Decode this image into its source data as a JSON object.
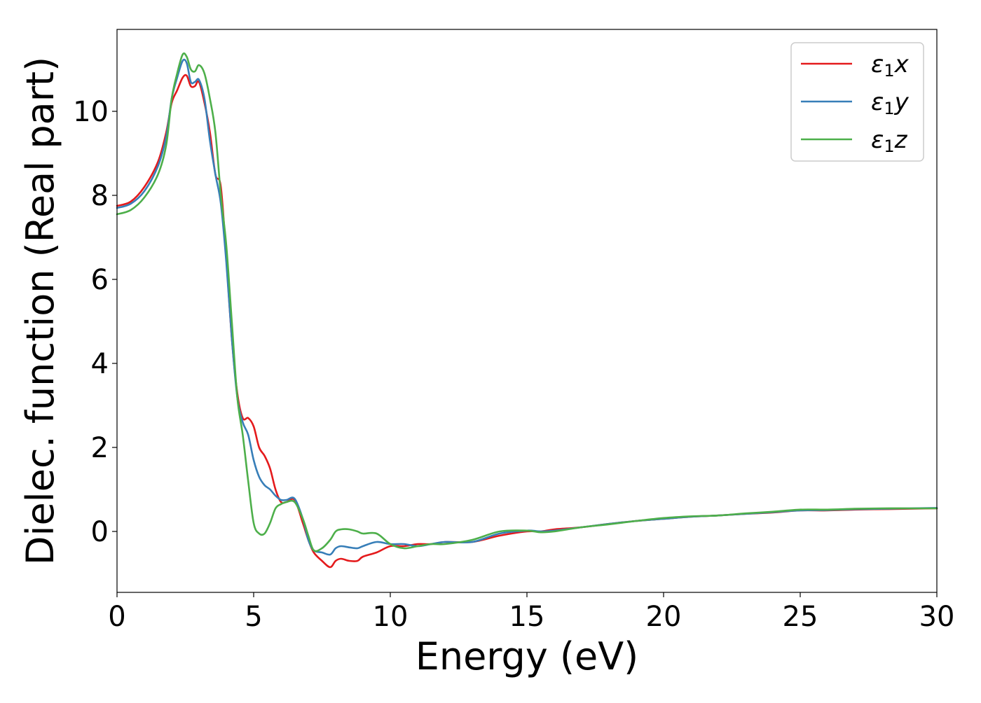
{
  "chart_data": {
    "type": "line",
    "xlabel": "Energy (eV)",
    "ylabel": "Dielec. function (Real part)",
    "xlim": [
      0,
      30
    ],
    "ylim": [
      -1.45,
      11.95
    ],
    "xticks": [
      0,
      5,
      10,
      15,
      20,
      25,
      30
    ],
    "yticks": [
      0,
      2,
      4,
      6,
      8,
      10
    ],
    "grid": false,
    "legend_position": "top-right",
    "series": [
      {
        "name": "ε1x",
        "legend": {
          "base": "ε",
          "sub": "1",
          "suffix": "x"
        },
        "color": "#e41a1c",
        "points": [
          [
            0,
            7.75
          ],
          [
            0.5,
            7.85
          ],
          [
            1.0,
            8.2
          ],
          [
            1.5,
            8.8
          ],
          [
            1.8,
            9.5
          ],
          [
            2.0,
            10.2
          ],
          [
            2.2,
            10.5
          ],
          [
            2.4,
            10.8
          ],
          [
            2.55,
            10.85
          ],
          [
            2.7,
            10.6
          ],
          [
            2.85,
            10.6
          ],
          [
            3.0,
            10.7
          ],
          [
            3.2,
            10.2
          ],
          [
            3.4,
            9.5
          ],
          [
            3.6,
            8.5
          ],
          [
            3.8,
            8.2
          ],
          [
            4.0,
            6.5
          ],
          [
            4.2,
            4.6
          ],
          [
            4.4,
            3.3
          ],
          [
            4.6,
            2.7
          ],
          [
            4.8,
            2.7
          ],
          [
            5.0,
            2.5
          ],
          [
            5.2,
            2.0
          ],
          [
            5.4,
            1.8
          ],
          [
            5.6,
            1.5
          ],
          [
            5.8,
            1.0
          ],
          [
            6.0,
            0.7
          ],
          [
            6.2,
            0.7
          ],
          [
            6.5,
            0.75
          ],
          [
            6.8,
            0.2
          ],
          [
            7.0,
            -0.2
          ],
          [
            7.2,
            -0.5
          ],
          [
            7.5,
            -0.7
          ],
          [
            7.8,
            -0.85
          ],
          [
            8.0,
            -0.7
          ],
          [
            8.2,
            -0.65
          ],
          [
            8.5,
            -0.7
          ],
          [
            8.8,
            -0.7
          ],
          [
            9.0,
            -0.6
          ],
          [
            9.5,
            -0.5
          ],
          [
            10.0,
            -0.35
          ],
          [
            10.5,
            -0.35
          ],
          [
            11.0,
            -0.3
          ],
          [
            11.5,
            -0.3
          ],
          [
            12.0,
            -0.25
          ],
          [
            13.0,
            -0.25
          ],
          [
            14.0,
            -0.1
          ],
          [
            15.0,
            0.0
          ],
          [
            15.5,
            0.0
          ],
          [
            16.0,
            0.05
          ],
          [
            17.0,
            0.1
          ],
          [
            18.0,
            0.18
          ],
          [
            19.0,
            0.25
          ],
          [
            20.0,
            0.3
          ],
          [
            21.0,
            0.35
          ],
          [
            22.0,
            0.38
          ],
          [
            23.0,
            0.42
          ],
          [
            24.0,
            0.45
          ],
          [
            25.0,
            0.5
          ],
          [
            26.0,
            0.5
          ],
          [
            27.0,
            0.52
          ],
          [
            28.0,
            0.53
          ],
          [
            29.0,
            0.54
          ],
          [
            30.0,
            0.55
          ]
        ]
      },
      {
        "name": "ε1y",
        "legend": {
          "base": "ε",
          "sub": "1",
          "suffix": "y"
        },
        "color": "#377eb8",
        "points": [
          [
            0,
            7.7
          ],
          [
            0.5,
            7.8
          ],
          [
            1.0,
            8.1
          ],
          [
            1.5,
            8.7
          ],
          [
            1.8,
            9.4
          ],
          [
            2.0,
            10.3
          ],
          [
            2.2,
            10.8
          ],
          [
            2.4,
            11.2
          ],
          [
            2.55,
            11.15
          ],
          [
            2.7,
            10.7
          ],
          [
            2.85,
            10.7
          ],
          [
            3.0,
            10.75
          ],
          [
            3.2,
            10.3
          ],
          [
            3.4,
            9.3
          ],
          [
            3.6,
            8.5
          ],
          [
            3.8,
            7.8
          ],
          [
            4.0,
            6.4
          ],
          [
            4.2,
            4.6
          ],
          [
            4.4,
            3.2
          ],
          [
            4.6,
            2.6
          ],
          [
            4.8,
            2.3
          ],
          [
            5.0,
            1.7
          ],
          [
            5.2,
            1.3
          ],
          [
            5.4,
            1.1
          ],
          [
            5.6,
            1.0
          ],
          [
            5.8,
            0.85
          ],
          [
            6.0,
            0.75
          ],
          [
            6.2,
            0.75
          ],
          [
            6.5,
            0.78
          ],
          [
            6.8,
            0.3
          ],
          [
            7.0,
            -0.2
          ],
          [
            7.2,
            -0.45
          ],
          [
            7.5,
            -0.5
          ],
          [
            7.8,
            -0.55
          ],
          [
            8.0,
            -0.4
          ],
          [
            8.2,
            -0.35
          ],
          [
            8.5,
            -0.38
          ],
          [
            8.8,
            -0.4
          ],
          [
            9.0,
            -0.35
          ],
          [
            9.5,
            -0.25
          ],
          [
            10.0,
            -0.3
          ],
          [
            10.5,
            -0.3
          ],
          [
            11.0,
            -0.35
          ],
          [
            11.5,
            -0.3
          ],
          [
            12.0,
            -0.25
          ],
          [
            13.0,
            -0.25
          ],
          [
            14.0,
            -0.05
          ],
          [
            15.0,
            0.02
          ],
          [
            15.5,
            0.0
          ],
          [
            16.0,
            0.02
          ],
          [
            17.0,
            0.1
          ],
          [
            18.0,
            0.18
          ],
          [
            19.0,
            0.25
          ],
          [
            20.0,
            0.3
          ],
          [
            21.0,
            0.35
          ],
          [
            22.0,
            0.38
          ],
          [
            23.0,
            0.42
          ],
          [
            24.0,
            0.46
          ],
          [
            25.0,
            0.5
          ],
          [
            26.0,
            0.51
          ],
          [
            27.0,
            0.53
          ],
          [
            28.0,
            0.54
          ],
          [
            29.0,
            0.55
          ],
          [
            30.0,
            0.56
          ]
        ]
      },
      {
        "name": "ε1z",
        "legend": {
          "base": "ε",
          "sub": "1",
          "suffix": "z"
        },
        "color": "#4daf4a",
        "points": [
          [
            0,
            7.55
          ],
          [
            0.5,
            7.65
          ],
          [
            1.0,
            7.95
          ],
          [
            1.5,
            8.5
          ],
          [
            1.8,
            9.2
          ],
          [
            2.0,
            10.3
          ],
          [
            2.2,
            10.9
          ],
          [
            2.4,
            11.35
          ],
          [
            2.55,
            11.3
          ],
          [
            2.7,
            11.0
          ],
          [
            2.85,
            10.95
          ],
          [
            3.0,
            11.1
          ],
          [
            3.2,
            10.9
          ],
          [
            3.4,
            10.3
          ],
          [
            3.6,
            9.5
          ],
          [
            3.8,
            8.0
          ],
          [
            4.0,
            6.8
          ],
          [
            4.2,
            5.0
          ],
          [
            4.4,
            3.2
          ],
          [
            4.6,
            2.3
          ],
          [
            4.8,
            1.2
          ],
          [
            5.0,
            0.2
          ],
          [
            5.2,
            -0.05
          ],
          [
            5.4,
            -0.05
          ],
          [
            5.6,
            0.2
          ],
          [
            5.8,
            0.55
          ],
          [
            6.0,
            0.65
          ],
          [
            6.2,
            0.7
          ],
          [
            6.5,
            0.7
          ],
          [
            6.8,
            0.3
          ],
          [
            7.0,
            -0.1
          ],
          [
            7.2,
            -0.45
          ],
          [
            7.5,
            -0.4
          ],
          [
            7.8,
            -0.2
          ],
          [
            8.0,
            0.0
          ],
          [
            8.2,
            0.05
          ],
          [
            8.5,
            0.05
          ],
          [
            8.8,
            0.0
          ],
          [
            9.0,
            -0.05
          ],
          [
            9.5,
            -0.05
          ],
          [
            10.0,
            -0.3
          ],
          [
            10.5,
            -0.4
          ],
          [
            11.0,
            -0.35
          ],
          [
            11.5,
            -0.3
          ],
          [
            12.0,
            -0.3
          ],
          [
            13.0,
            -0.2
          ],
          [
            14.0,
            0.0
          ],
          [
            15.0,
            0.02
          ],
          [
            15.5,
            -0.02
          ],
          [
            16.0,
            0.0
          ],
          [
            17.0,
            0.1
          ],
          [
            18.0,
            0.17
          ],
          [
            19.0,
            0.25
          ],
          [
            20.0,
            0.32
          ],
          [
            21.0,
            0.36
          ],
          [
            22.0,
            0.38
          ],
          [
            23.0,
            0.43
          ],
          [
            24.0,
            0.47
          ],
          [
            25.0,
            0.52
          ],
          [
            26.0,
            0.52
          ],
          [
            27.0,
            0.54
          ],
          [
            28.0,
            0.55
          ],
          [
            29.0,
            0.55
          ],
          [
            30.0,
            0.55
          ]
        ]
      }
    ]
  }
}
